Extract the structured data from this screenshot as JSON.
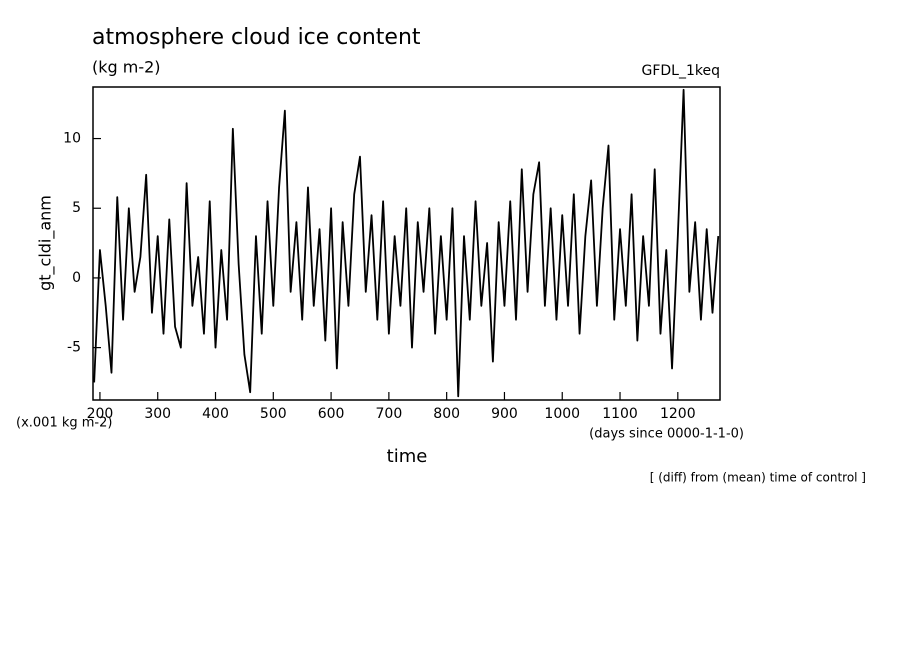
{
  "chart_data": {
    "type": "line",
    "title": "atmosphere cloud ice content",
    "subtitle": "(kg m-2)",
    "annotation": "GFDL_1keq",
    "y_label": "gt_cldi_anm",
    "y_unit": "(x.001 kg m-2)",
    "x_unit": "(days since 0000-1-1-0)",
    "x_label": "time",
    "note": "[ (diff) from (mean) time of control ]",
    "color": "#000000",
    "xlim": [
      188,
      1273
    ],
    "ylim": [
      -8.76,
      13.7
    ],
    "xticks": [
      200,
      300,
      400,
      500,
      600,
      700,
      800,
      900,
      1000,
      1100,
      1200
    ],
    "yticks": [
      -5,
      0,
      5,
      10
    ],
    "x": [
      190,
      200,
      210,
      220,
      230,
      240,
      250,
      260,
      270,
      280,
      290,
      300,
      310,
      320,
      330,
      340,
      350,
      360,
      370,
      380,
      390,
      400,
      410,
      420,
      430,
      440,
      450,
      460,
      470,
      480,
      490,
      500,
      510,
      520,
      530,
      540,
      550,
      560,
      570,
      580,
      590,
      600,
      610,
      620,
      630,
      640,
      650,
      660,
      670,
      680,
      690,
      700,
      710,
      720,
      730,
      740,
      750,
      760,
      770,
      780,
      790,
      800,
      810,
      820,
      830,
      840,
      850,
      860,
      870,
      880,
      890,
      900,
      910,
      920,
      930,
      940,
      950,
      960,
      970,
      980,
      990,
      1000,
      1010,
      1020,
      1030,
      1040,
      1050,
      1060,
      1070,
      1080,
      1090,
      1100,
      1110,
      1120,
      1130,
      1140,
      1150,
      1160,
      1170,
      1180,
      1190,
      1200,
      1210,
      1220,
      1230,
      1240,
      1250,
      1260,
      1270
    ],
    "values": [
      -7.5,
      2,
      -2,
      -6.8,
      5.8,
      -3,
      5,
      -1,
      1.5,
      7.4,
      -2.5,
      3,
      -4,
      4.2,
      -3.5,
      -5,
      6.8,
      -2,
      1.5,
      -4,
      5.5,
      -5,
      2,
      -3,
      10.7,
      1,
      -5.5,
      -8.2,
      3,
      -4,
      5.5,
      -2,
      6.5,
      12,
      -1,
      4,
      -3,
      6.5,
      -2,
      3.5,
      -4.5,
      5,
      -6.5,
      4,
      -2,
      6,
      8.7,
      -1,
      4.5,
      -3,
      5.5,
      -4,
      3,
      -2,
      5,
      -5,
      4,
      -1,
      5,
      -4,
      3,
      -3,
      5,
      -8.5,
      3,
      -3,
      5.5,
      -2,
      2.5,
      -6,
      4,
      -2,
      5.5,
      -3,
      7.8,
      -1,
      6,
      8.3,
      -2,
      5,
      -3,
      4.5,
      -2,
      6,
      -4,
      3,
      7,
      -2,
      5,
      9.5,
      -3,
      3.5,
      -2,
      6,
      -4.5,
      3,
      -2,
      7.8,
      -4,
      2,
      -6.5,
      3,
      13.5,
      -1,
      4,
      -3,
      3.5,
      -2.5,
      3
    ]
  }
}
